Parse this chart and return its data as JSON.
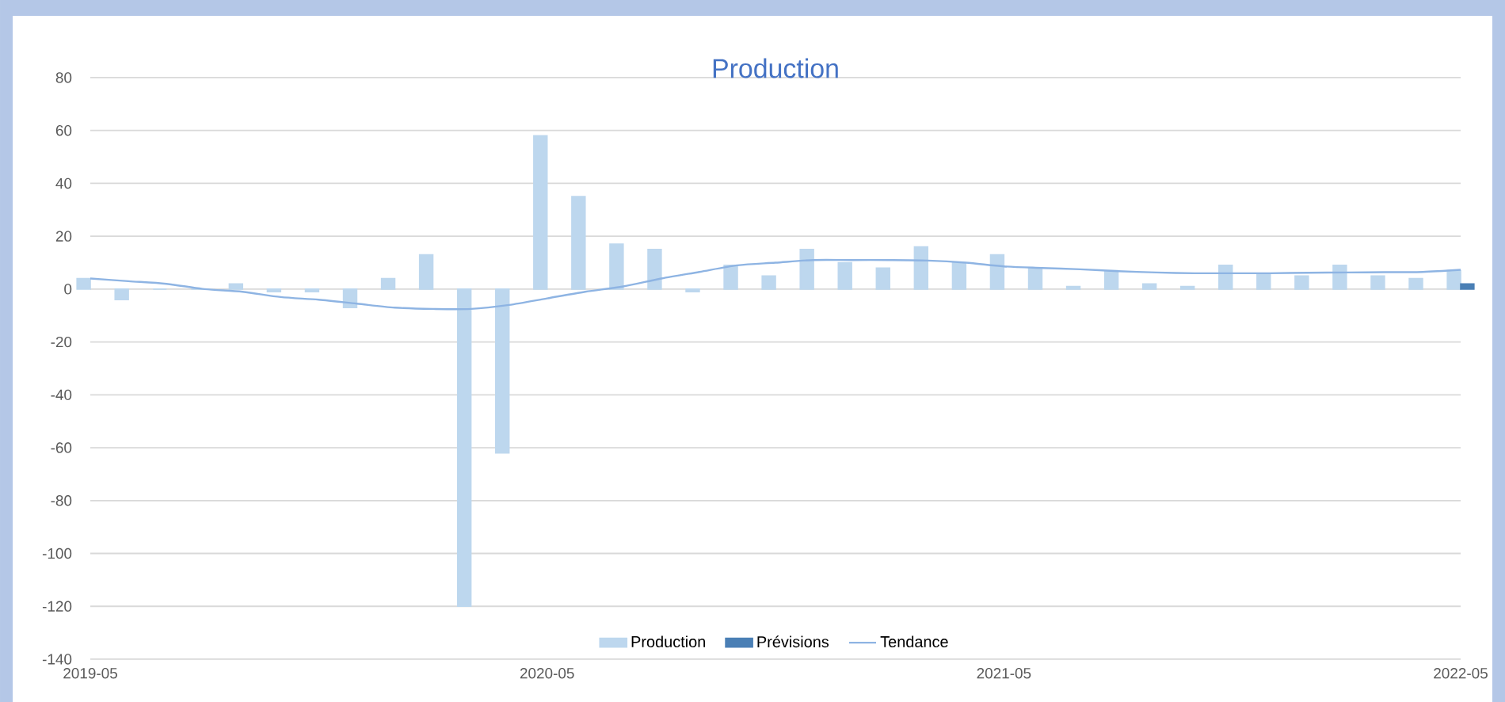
{
  "chart_data": {
    "type": "bar",
    "title": "Production",
    "x": [
      "2019-05",
      "2019-06",
      "2019-07",
      "2019-08",
      "2019-09",
      "2019-10",
      "2019-11",
      "2019-12",
      "2020-01",
      "2020-02",
      "2020-03",
      "2020-04",
      "2020-05",
      "2020-06",
      "2020-07",
      "2020-08",
      "2020-09",
      "2020-10",
      "2020-11",
      "2020-12",
      "2021-01",
      "2021-02",
      "2021-03",
      "2021-04",
      "2021-05",
      "2021-06",
      "2021-07",
      "2021-08",
      "2021-09",
      "2021-10",
      "2021-11",
      "2021-12",
      "2022-01",
      "2022-02",
      "2022-03",
      "2022-04",
      "2022-05"
    ],
    "series": [
      {
        "name": "Production",
        "color": "#bdd7ee",
        "values": [
          4,
          -4,
          0,
          0,
          2,
          -1,
          -1,
          -7,
          4,
          13,
          -120,
          -62,
          58,
          35,
          17,
          15,
          -1,
          9,
          5,
          15,
          10,
          8,
          16,
          10,
          13,
          8,
          1,
          7,
          2,
          1,
          9,
          6,
          5,
          9,
          5,
          4,
          7
        ]
      },
      {
        "name": "Prévisions",
        "color": "#4a7fb5",
        "values": [
          null,
          null,
          null,
          null,
          null,
          null,
          null,
          null,
          null,
          null,
          null,
          null,
          null,
          null,
          null,
          null,
          null,
          null,
          null,
          null,
          null,
          null,
          null,
          null,
          null,
          null,
          null,
          null,
          null,
          null,
          null,
          null,
          null,
          null,
          null,
          null,
          2
        ]
      },
      {
        "name": "Tendance",
        "type": "line",
        "color": "#8eb4e3",
        "values": [
          4,
          3,
          2,
          0,
          -1,
          -3,
          -4,
          -5.5,
          -7,
          -7.5,
          -7.5,
          -6,
          -3.5,
          -1,
          1,
          4,
          6.5,
          9,
          10,
          11,
          11,
          11,
          10.8,
          10,
          8.6,
          8,
          7.5,
          6.8,
          6.3,
          6,
          6,
          6,
          6.2,
          6.3,
          6.4,
          6.5,
          7.3
        ]
      }
    ],
    "xlim": [
      "2019-05",
      "2022-05"
    ],
    "xticks": [
      "2019-05",
      "2020-05",
      "2021-05",
      "2022-05"
    ],
    "ylim": [
      -140,
      80
    ],
    "yticks": [
      -140,
      -120,
      -100,
      -80,
      -60,
      -40,
      -20,
      0,
      20,
      40,
      60,
      80
    ],
    "grid": "y",
    "legend": "bottom",
    "marker": "none",
    "line_style": "solid"
  }
}
